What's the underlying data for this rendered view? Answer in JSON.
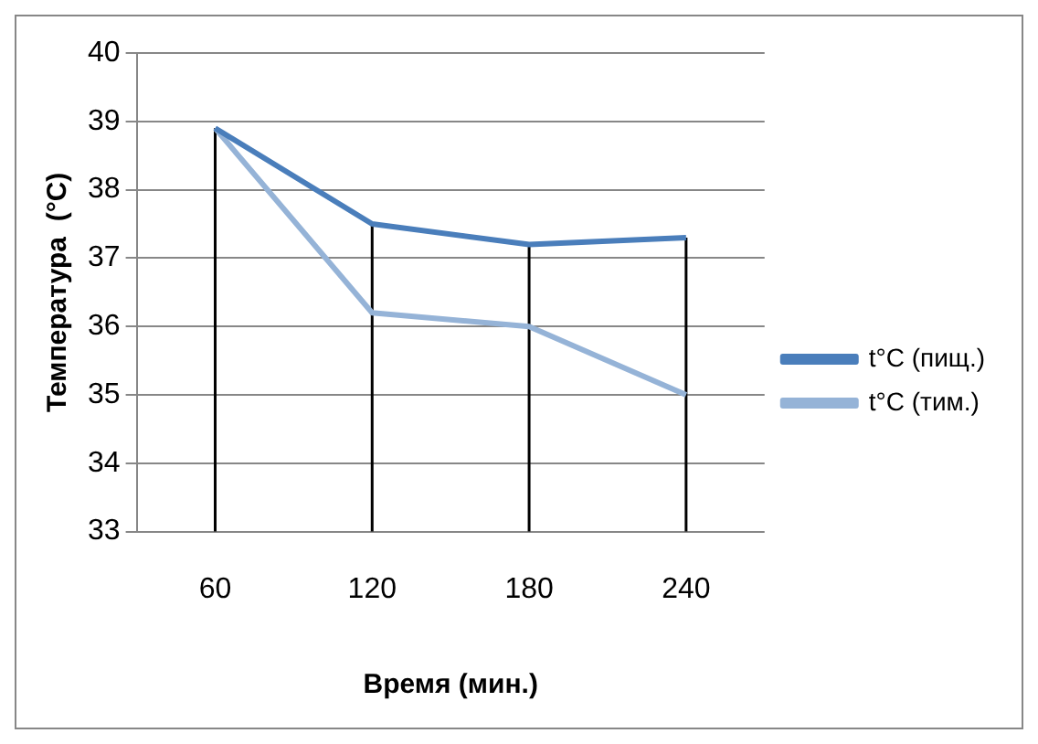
{
  "chart_data": {
    "type": "line",
    "xlabel": "Время (мин.)",
    "ylabel": "Температура  (°C)",
    "categories": [
      "60",
      "120",
      "180",
      "240"
    ],
    "series": [
      {
        "name": "t°C (пищ.)",
        "color": "#4a7ebb",
        "values": [
          38.9,
          37.5,
          37.2,
          37.3
        ],
        "errors": [
          [
            33,
            38.9
          ],
          [
            33,
            37.5
          ],
          [
            33,
            37.2
          ],
          [
            33,
            37.3
          ]
        ]
      },
      {
        "name": "t°C (тим.)",
        "color": "#95b3d7",
        "values": [
          38.9,
          36.2,
          36.0,
          35.0
        ]
      }
    ],
    "ylim": [
      33,
      40
    ],
    "yticks": [
      33,
      34,
      35,
      36,
      37,
      38,
      39,
      40
    ],
    "grid": "y",
    "legend": "right",
    "marker": "none",
    "line_style": "solid"
  }
}
